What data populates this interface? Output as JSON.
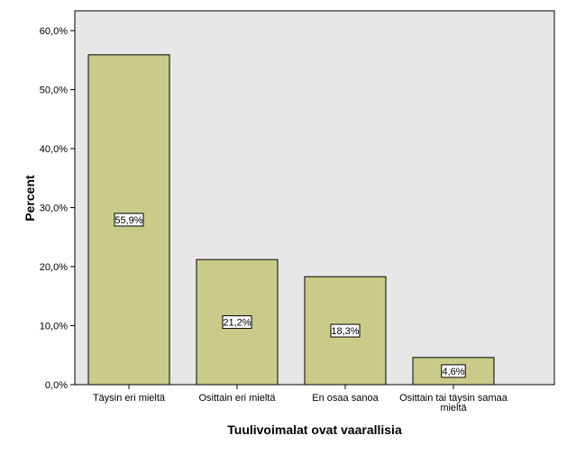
{
  "chart_data": {
    "type": "bar",
    "categories": [
      "Täysin eri mieltä",
      "Osittain eri mieltä",
      "En osaa sanoa",
      "Osittain tai täysin samaa mieltä"
    ],
    "category_lines": [
      [
        "Täysin eri mieltä"
      ],
      [
        "Osittain eri mieltä"
      ],
      [
        "En osaa sanoa"
      ],
      [
        "Osittain tai täysin samaa",
        "mieltä"
      ]
    ],
    "values": [
      55.9,
      21.2,
      18.3,
      4.6
    ],
    "data_labels": [
      "55,9%",
      "21,2%",
      "18,3%",
      "4,6%"
    ],
    "xlabel": "Tuulivoimalat ovat vaarallisia",
    "ylabel": "Percent",
    "ylim": [
      0,
      60
    ],
    "yticks": [
      0,
      10,
      20,
      30,
      40,
      50,
      60
    ],
    "ytick_labels": [
      "0,0%",
      "10,0%",
      "20,0%",
      "30,0%",
      "40,0%",
      "50,0%",
      "60,0%"
    ],
    "grid": false,
    "colors": {
      "bar": "#c8cc88",
      "plot_background": "#e7e7e7",
      "bar_edge": "#000000"
    }
  }
}
